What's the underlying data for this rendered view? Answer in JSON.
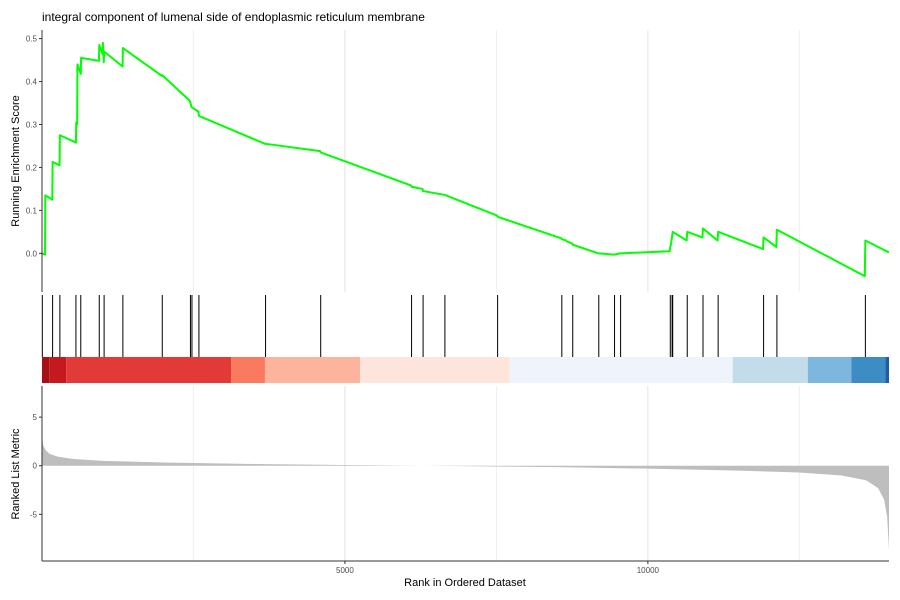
{
  "chart_data": {
    "type": "line",
    "title": "integral component of lumenal side of endoplasmic reticulum membrane",
    "xlabel": "Rank in Ordered Dataset",
    "x_ticks": [
      5000,
      10000
    ],
    "x_tick_labels": [
      "5000",
      "10000"
    ],
    "xlim": [
      0,
      13980
    ],
    "grid": true,
    "panels": [
      {
        "name": "running-es",
        "ylabel": "Running Enrichment Score",
        "ylim": [
          -0.09,
          0.52
        ],
        "y_ticks": [
          0.0,
          0.1,
          0.2,
          0.3,
          0.4,
          0.5
        ],
        "y_tick_labels": [
          "0.0",
          "0.1",
          "0.2",
          "0.3",
          "0.4",
          "0.5"
        ],
        "series": [
          {
            "color": "#00ff00",
            "x": [
              0,
              50,
              55,
              170,
              175,
              290,
              295,
              560,
              565,
              580,
              585,
              640,
              645,
              940,
              945,
              1000,
              1005,
              1020,
              1025,
              1330,
              1335,
              1980,
              1985,
              2440,
              2450,
              2470,
              2475,
              2580,
              2590,
              3680,
              3690,
              4590,
              4600,
              6090,
              6100,
              6280,
              6290,
              6650,
              7510,
              7520,
              8570,
              8580,
              8650,
              8660,
              8750,
              8760,
              9180,
              9190,
              9440,
              9450,
              9540,
              9550,
              10360,
              10370,
              10380,
              10400,
              10410,
              10640,
              10650,
              10900,
              10910,
              11150,
              11160,
              11900,
              11910,
              12120,
              12130,
              13580,
              13590,
              13980
            ],
            "y": [
              0.0,
              -0.003,
              0.135,
              0.125,
              0.213,
              0.205,
              0.275,
              0.258,
              0.305,
              0.3,
              0.44,
              0.418,
              0.455,
              0.448,
              0.485,
              0.464,
              0.49,
              0.445,
              0.47,
              0.435,
              0.478,
              0.413,
              0.415,
              0.355,
              0.35,
              0.34,
              0.34,
              0.33,
              0.32,
              0.255,
              0.255,
              0.238,
              0.235,
              0.158,
              0.155,
              0.15,
              0.145,
              0.136,
              0.088,
              0.085,
              0.035,
              0.033,
              0.03,
              0.028,
              0.023,
              0.02,
              0.0,
              0.0,
              -0.003,
              -0.003,
              0.0,
              0.0,
              0.005,
              0.015,
              0.02,
              0.04,
              0.05,
              0.03,
              0.05,
              0.037,
              0.058,
              0.03,
              0.05,
              0.01,
              0.037,
              0.015,
              0.055,
              -0.053,
              0.03,
              0.002
            ]
          }
        ]
      },
      {
        "name": "gene-hits",
        "hit_ranks": [
          5,
          175,
          295,
          560,
          640,
          945,
          1025,
          1335,
          1985,
          2450,
          2475,
          2590,
          3690,
          4600,
          6100,
          6290,
          6650,
          7520,
          8580,
          8760,
          9190,
          9450,
          9550,
          10370,
          10400,
          10410,
          10650,
          10910,
          11160,
          11910,
          12130,
          13590
        ],
        "color_bands": [
          {
            "from": 0,
            "to": 120,
            "color": "#a50f15"
          },
          {
            "from": 120,
            "to": 400,
            "color": "#c5191f"
          },
          {
            "from": 400,
            "to": 3120,
            "color": "#e23b37"
          },
          {
            "from": 3120,
            "to": 3680,
            "color": "#fa7a5f"
          },
          {
            "from": 3680,
            "to": 5250,
            "color": "#fcb59c"
          },
          {
            "from": 5250,
            "to": 7720,
            "color": "#fee5dc"
          },
          {
            "from": 7720,
            "to": 11400,
            "color": "#eef3fc"
          },
          {
            "from": 11400,
            "to": 12640,
            "color": "#c3dcea"
          },
          {
            "from": 12640,
            "to": 13360,
            "color": "#7db7dd"
          },
          {
            "from": 13360,
            "to": 13920,
            "color": "#3d8dc5"
          },
          {
            "from": 13920,
            "to": 13980,
            "color": "#1c5ea8"
          }
        ]
      },
      {
        "name": "ranked-metric",
        "ylabel": "Ranked List Metric",
        "ylim": [
          -9.8,
          8.2
        ],
        "y_ticks": [
          -5,
          0,
          5
        ],
        "y_tick_labels": [
          "-5",
          "0",
          "5"
        ],
        "fill_color": "#bebebe",
        "x": [
          0,
          20,
          60,
          120,
          250,
          500,
          1000,
          2000,
          3500,
          5000,
          6500,
          7500,
          8500,
          10000,
          11500,
          12500,
          13200,
          13600,
          13800,
          13900,
          13950,
          13970,
          13980
        ],
        "y": [
          3.0,
          2.1,
          1.6,
          1.25,
          0.95,
          0.7,
          0.5,
          0.33,
          0.18,
          0.07,
          -0.02,
          -0.08,
          -0.15,
          -0.3,
          -0.5,
          -0.7,
          -1.0,
          -1.5,
          -2.3,
          -3.5,
          -5.3,
          -7.5,
          -8.7
        ]
      }
    ]
  }
}
